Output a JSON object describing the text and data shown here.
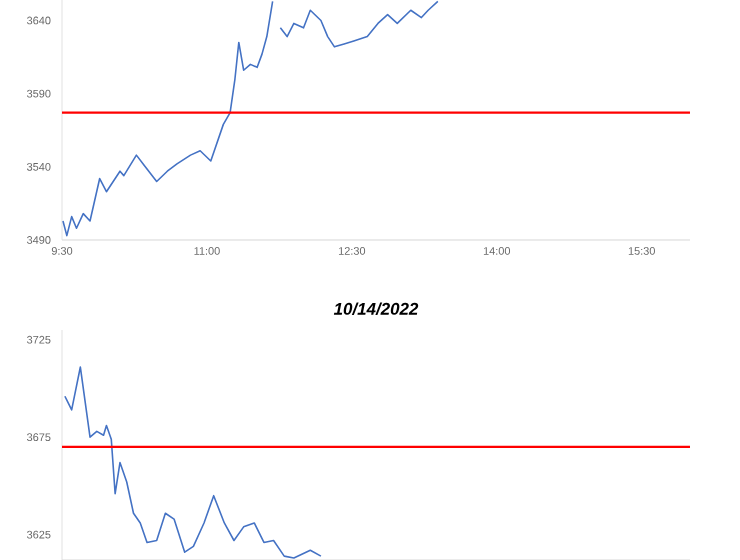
{
  "chart_data": [
    {
      "type": "line",
      "xlim": [
        9.5,
        16.0
      ],
      "ylim": [
        3490,
        3654
      ],
      "xticks": [
        {
          "value": 9.5,
          "label": "9:30"
        },
        {
          "value": 11,
          "label": "11:00"
        },
        {
          "value": 12.5,
          "label": "12:30"
        },
        {
          "value": 14,
          "label": "14:00"
        },
        {
          "value": 15.5,
          "label": "15:30"
        }
      ],
      "yticks": [
        3490,
        3540,
        3590,
        3640
      ],
      "x": [
        9.51,
        9.55,
        9.6,
        9.65,
        9.72,
        9.79,
        9.89,
        9.96,
        10.1,
        10.14,
        10.27,
        10.34,
        10.48,
        10.59,
        10.69,
        10.83,
        10.93,
        11.04,
        11.17,
        11.24,
        11.29,
        11.33,
        11.38,
        11.45,
        11.52,
        11.57,
        11.62,
        11.68,
        11.72,
        11.76,
        11.83,
        11.9,
        12.0,
        12.07,
        12.18,
        12.25,
        12.32,
        12.42,
        12.52,
        12.66,
        12.77,
        12.87,
        12.97,
        13.11,
        13.22,
        13.29,
        13.39
      ],
      "series": [
        {
          "color": "#4472c4",
          "values": [
            3503,
            3493,
            3506,
            3498,
            3508,
            3503,
            3532,
            3523,
            3537,
            3534,
            3548,
            3542,
            3530,
            3537,
            3542,
            3548,
            3551,
            3544,
            3569,
            3577,
            3600,
            3625,
            3606,
            3610,
            3608,
            3617,
            3629,
            3653,
            null,
            3635,
            3629,
            3638,
            3635,
            3647,
            3640,
            3629,
            3622,
            3624,
            3626,
            3629,
            3638,
            3644,
            3638,
            3647,
            3642,
            3647,
            3653
          ]
        }
      ],
      "ref_lines": [
        {
          "axis": "y",
          "value": 3577,
          "color": "#ff0000"
        }
      ]
    },
    {
      "type": "line",
      "title": "10/14/2022",
      "xlim": [
        9.5,
        16.0
      ],
      "ylim": [
        3612,
        3730
      ],
      "yticks": [
        3625,
        3675,
        3725
      ],
      "x": [
        9.53,
        9.55,
        9.6,
        9.69,
        9.79,
        9.86,
        9.93,
        9.96,
        10.01,
        10.05,
        10.1,
        10.17,
        10.24,
        10.31,
        10.38,
        10.48,
        10.57,
        10.66,
        10.77,
        10.86,
        10.97,
        11.07,
        11.18,
        11.28,
        11.38,
        11.49,
        11.59,
        11.69,
        11.8,
        11.9,
        12.07,
        12.18
      ],
      "series": [
        {
          "color": "#4472c4",
          "values": [
            3696,
            3694,
            3689,
            3711,
            3675,
            3678,
            3676,
            3681,
            3674,
            3646,
            3662,
            3652,
            3636,
            3631,
            3621,
            3622,
            3636,
            3633,
            3616,
            3619,
            3631,
            3645,
            3631,
            3622,
            3629,
            3631,
            3621,
            3622,
            3614,
            3613,
            3617,
            3614
          ]
        }
      ],
      "ref_lines": [
        {
          "axis": "y",
          "value": 3670,
          "color": "#ff0000"
        }
      ]
    }
  ]
}
